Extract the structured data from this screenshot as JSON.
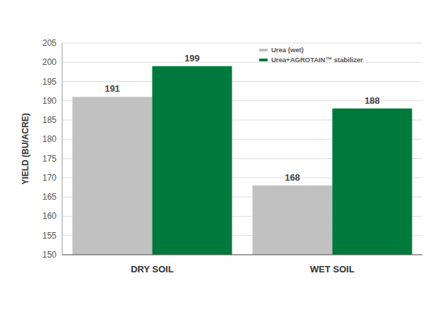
{
  "chart_data": {
    "type": "bar",
    "y_label": "YIELD (BU/ACRE)",
    "categories": [
      "DRY SOIL",
      "WET SOIL"
    ],
    "series": [
      {
        "name": "Urea (wet)",
        "color": "#c1c1c1",
        "values": [
          191,
          168
        ]
      },
      {
        "name": "Urea+AGROTAIN™ stabilizer",
        "color": "#007a3c",
        "values": [
          199,
          188
        ]
      }
    ],
    "ylim": [
      150,
      205
    ],
    "yticks": [
      150,
      155,
      160,
      165,
      170,
      175,
      180,
      185,
      190,
      195,
      200,
      205
    ],
    "grid": true,
    "data_labels": true,
    "legend": "upper right"
  }
}
